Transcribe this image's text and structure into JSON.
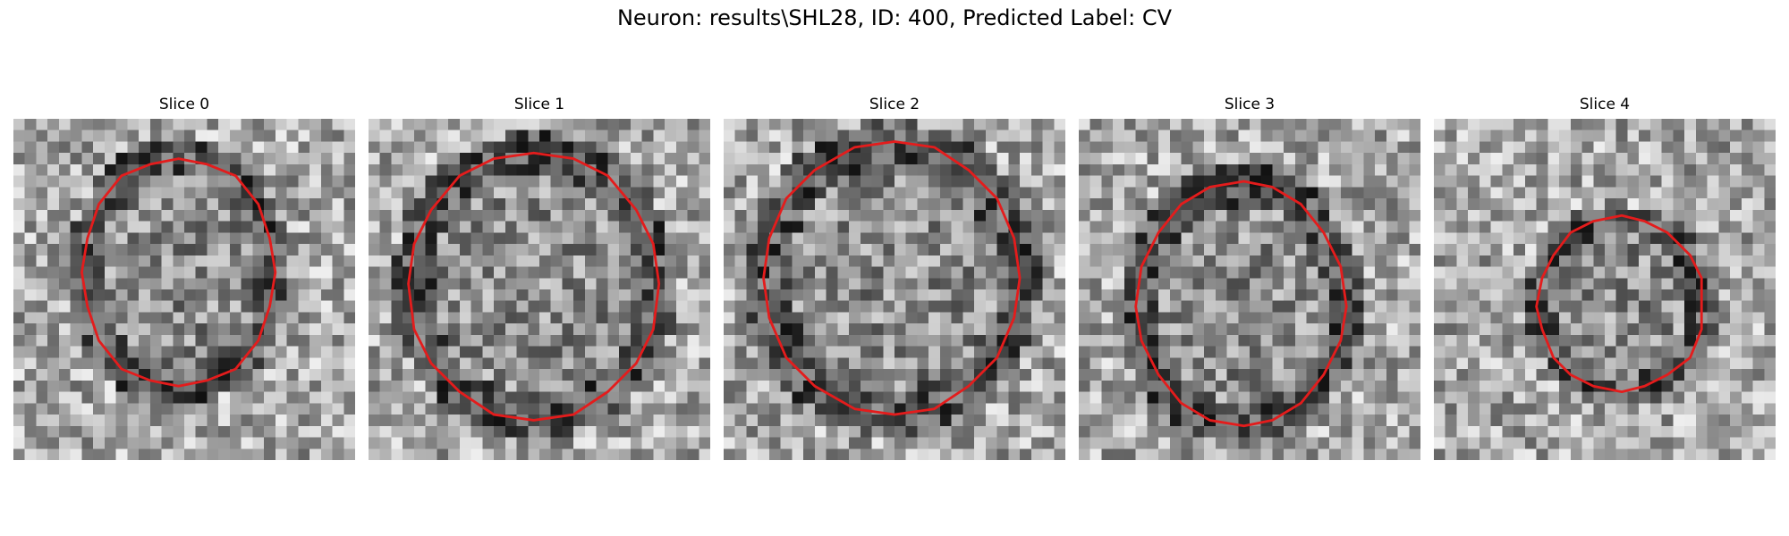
{
  "figure": {
    "title": "Neuron: results\\SHL28, ID: 400, Predicted Label: CV",
    "contour_color": "#e41c1c",
    "panels": [
      {
        "label": "Slice 0",
        "image": "grayscale microscopy patch with red contour"
      },
      {
        "label": "Slice 1",
        "image": "grayscale microscopy patch with red contour"
      },
      {
        "label": "Slice 2",
        "image": "grayscale microscopy patch with red contour"
      },
      {
        "label": "Slice 3",
        "image": "grayscale microscopy patch with red contour"
      },
      {
        "label": "Slice 4",
        "image": "grayscale microscopy patch with red contour"
      }
    ]
  }
}
